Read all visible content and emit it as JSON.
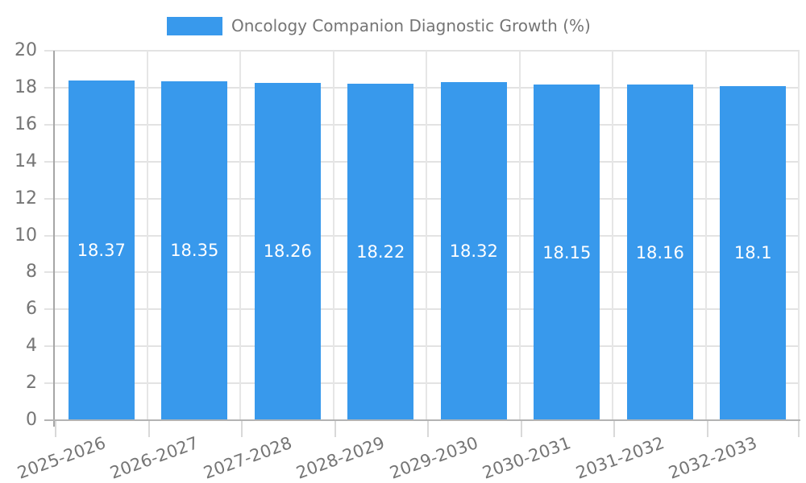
{
  "chart_data": {
    "type": "bar",
    "title": "Oncology Companion Diagnostic Growth (%)",
    "categories": [
      "2025-2026",
      "2026-2027",
      "2027-2028",
      "2028-2029",
      "2029-2030",
      "2030-2031",
      "2031-2032",
      "2032-2033"
    ],
    "values": [
      18.37,
      18.35,
      18.26,
      18.22,
      18.32,
      18.15,
      18.16,
      18.1
    ],
    "value_labels": [
      "18.37",
      "18.35",
      "18.26",
      "18.22",
      "18.32",
      "18.15",
      "18.16",
      "18.1"
    ],
    "xlabel": "",
    "ylabel": "",
    "ylim": [
      0,
      20
    ],
    "ytick_step": 2,
    "ytick_labels": [
      "0",
      "2",
      "4",
      "6",
      "8",
      "10",
      "12",
      "14",
      "16",
      "18",
      "20"
    ],
    "grid": "on",
    "legend_position": "top",
    "colors": {
      "bar": "#3899ec",
      "gridline": "#e3e3e3",
      "y_axis_line": "#a6a6a6",
      "x_axis_line": "#b3b3b3",
      "tick": "#d9d9d9",
      "axis_text": "#757575",
      "value_text": "#ffffff",
      "background": "#ffffff"
    }
  }
}
